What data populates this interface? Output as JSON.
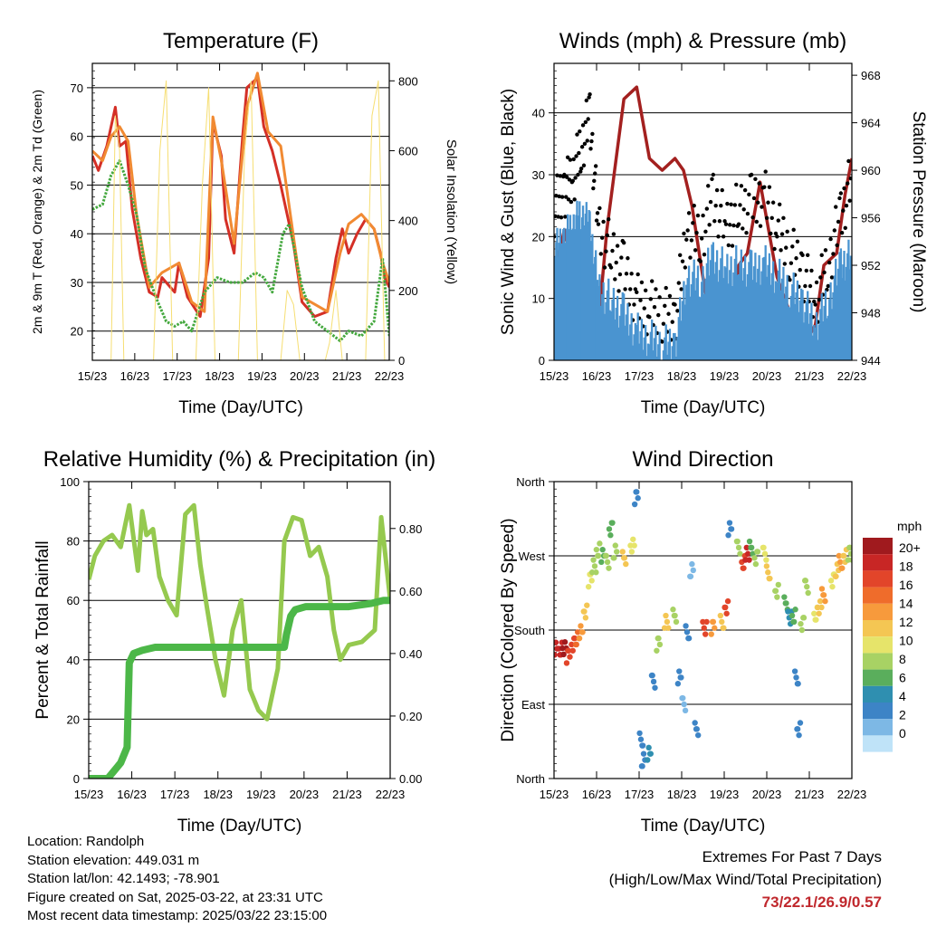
{
  "x_tick_labels": [
    "15/23",
    "16/23",
    "17/23",
    "18/23",
    "19/23",
    "20/23",
    "21/23",
    "22/23"
  ],
  "colors": {
    "temp2m": "#d42f26",
    "temp9m": "#f18a32",
    "dewpoint": "#44a83e",
    "solar": "#f6de72",
    "wind": "#4a94d0",
    "gust": "#000000",
    "pressure": "#a3201f",
    "rh": "#95c94f",
    "precip": "#4cb748",
    "extremes": "#c0282d"
  },
  "chart_data": [
    {
      "id": "temperature",
      "type": "line",
      "title": "Temperature (F)",
      "xlabel": "Time (Day/UTC)",
      "ylabel": "2m & 9m T (Red, Orange) & 2m Td (Green)",
      "y2label": "Solar Insolation (Yellow)",
      "x_range_days": [
        15.958,
        22.958
      ],
      "ylim": [
        14,
        75
      ],
      "y2lim": [
        0,
        850
      ],
      "yticks": [
        20,
        30,
        40,
        50,
        60,
        70
      ],
      "y2ticks": [
        0,
        200,
        400,
        600,
        800
      ],
      "grid": true,
      "series": [
        {
          "name": "2m T",
          "color_key": "temp2m",
          "x": [
            15.96,
            16.1,
            16.3,
            16.5,
            16.6,
            16.75,
            16.9,
            17.1,
            17.3,
            17.5,
            17.6,
            17.9,
            18.0,
            18.2,
            18.35,
            18.5,
            18.7,
            18.8,
            19.0,
            19.1,
            19.3,
            19.5,
            19.6,
            19.85,
            20.0,
            20.2,
            20.4,
            20.7,
            20.9,
            21.2,
            21.5,
            21.7,
            21.85,
            22.0,
            22.2,
            22.4,
            22.6,
            22.75,
            22.85,
            22.96
          ],
          "y": [
            56,
            53,
            58,
            66,
            58,
            59,
            45,
            35,
            28,
            27,
            31,
            28,
            34,
            27,
            25,
            23,
            35,
            63,
            56,
            43,
            36,
            60,
            70,
            72,
            62,
            57,
            50,
            38,
            26,
            23,
            24,
            35,
            41,
            36,
            40,
            43,
            41,
            36,
            31,
            29
          ]
        },
        {
          "name": "9m T",
          "color_key": "temp9m",
          "x": [
            15.96,
            16.2,
            16.4,
            16.6,
            16.8,
            17.0,
            17.3,
            17.6,
            18.0,
            18.3,
            18.6,
            18.8,
            19.0,
            19.3,
            19.6,
            19.85,
            20.1,
            20.4,
            20.9,
            21.5,
            21.8,
            22.0,
            22.3,
            22.6,
            22.8,
            22.96
          ],
          "y": [
            57,
            55,
            60,
            62,
            59,
            44,
            29,
            32,
            34,
            26,
            24,
            64,
            55,
            38,
            66,
            73,
            61,
            58,
            27,
            24,
            36,
            42,
            44,
            41,
            34,
            30
          ]
        },
        {
          "name": "2m Td",
          "color_key": "dewpoint",
          "x": [
            15.96,
            16.2,
            16.4,
            16.6,
            16.8,
            17.0,
            17.2,
            17.5,
            17.7,
            17.9,
            18.1,
            18.3,
            18.6,
            18.9,
            19.2,
            19.5,
            19.8,
            20.0,
            20.2,
            20.45,
            20.6,
            20.9,
            21.2,
            21.5,
            21.8,
            22.0,
            22.3,
            22.6,
            22.8,
            22.96
          ],
          "y": [
            45,
            46,
            52,
            55,
            50,
            44,
            33,
            26,
            22,
            21,
            22,
            20,
            28,
            31,
            30,
            30,
            32,
            31,
            28,
            40,
            42,
            29,
            22,
            20,
            18,
            20,
            19,
            22,
            35,
            19
          ]
        },
        {
          "name": "Solar",
          "color_key": "solar",
          "x": [
            15.96,
            16.4,
            16.5,
            16.6,
            16.7,
            17.4,
            17.55,
            17.7,
            17.85,
            18.4,
            18.55,
            18.7,
            18.85,
            19.4,
            19.55,
            19.7,
            19.85,
            20.4,
            20.55,
            20.7,
            20.85,
            21.45,
            21.55,
            21.7,
            21.85,
            22.4,
            22.55,
            22.7,
            22.85,
            22.96
          ],
          "y2": [
            0,
            0,
            700,
            600,
            0,
            0,
            600,
            800,
            0,
            0,
            500,
            780,
            0,
            0,
            600,
            800,
            0,
            0,
            200,
            160,
            0,
            0,
            50,
            200,
            0,
            0,
            700,
            800,
            0,
            0
          ]
        }
      ]
    },
    {
      "id": "winds",
      "type": "scatter",
      "title": "Winds (mph) & Pressure (mb)",
      "xlabel": "Time (Day/UTC)",
      "ylabel": "Sonic Wind & Gust (Blue, Black)",
      "y2label": "Station Pressure (Maroon)",
      "x_range_days": [
        15.958,
        22.958
      ],
      "ylim": [
        0,
        48
      ],
      "y2lim": [
        944,
        969
      ],
      "yticks": [
        0,
        10,
        20,
        30,
        40
      ],
      "y2ticks": [
        944,
        948,
        952,
        956,
        960,
        964,
        968
      ],
      "grid": true,
      "series": [
        {
          "name": "Pressure",
          "color_key": "pressure",
          "x": [
            15.96,
            16.2,
            16.4,
            16.6,
            16.8,
            16.95,
            17.2,
            17.6,
            17.9,
            18.2,
            18.5,
            18.8,
            19.0,
            19.2,
            19.5,
            19.7,
            19.9,
            20.1,
            20.3,
            20.5,
            20.8,
            21.2,
            21.5,
            21.8,
            22.1,
            22.3,
            22.6,
            22.8,
            22.96
          ],
          "y2": [
            951,
            955,
            952,
            949,
            946,
            945,
            955,
            966,
            967,
            961,
            960,
            961,
            960,
            957,
            950,
            947,
            948,
            947,
            952,
            953,
            959,
            951,
            948,
            945,
            947,
            952,
            953,
            958,
            961
          ]
        },
        {
          "name": "Gust",
          "color_key": "gust",
          "x": [
            15.96,
            16.2,
            16.4,
            16.6,
            16.8,
            17.0,
            17.3,
            17.6,
            17.9,
            18.2,
            18.5,
            18.8,
            19.1,
            19.4,
            19.7,
            20.0,
            20.3,
            20.6,
            20.9,
            21.2,
            21.5,
            21.8,
            22.1,
            22.4,
            22.7,
            22.96
          ],
          "y": [
            25,
            28,
            30,
            35,
            40,
            22,
            18,
            15,
            10,
            9,
            8,
            7,
            22,
            20,
            27,
            22,
            25,
            26,
            27,
            22,
            18,
            15,
            10,
            16,
            24,
            30
          ]
        },
        {
          "name": "Wind",
          "color_key": "wind",
          "x": [
            15.96,
            16.2,
            16.4,
            16.6,
            16.8,
            17.0,
            17.3,
            17.6,
            17.9,
            18.2,
            18.5,
            18.8,
            19.1,
            19.4,
            19.7,
            20.0,
            20.3,
            20.6,
            20.9,
            21.2,
            21.5,
            21.8,
            22.1,
            22.4,
            22.7,
            22.96
          ],
          "y": [
            18,
            20,
            22,
            24,
            22,
            12,
            10,
            8,
            5,
            4,
            3,
            3,
            14,
            13,
            17,
            15,
            16,
            15,
            16,
            14,
            12,
            10,
            6,
            10,
            16,
            17
          ]
        }
      ]
    },
    {
      "id": "humidity",
      "type": "line",
      "title": "Relative Humidity (%) & Precipitation (in)",
      "xlabel": "Time (Day/UTC)",
      "ylabel": "Percent & Total Rainfall",
      "x_range_days": [
        15.958,
        22.958
      ],
      "ylim": [
        0,
        100
      ],
      "y2lim": [
        0,
        0.95
      ],
      "yticks": [
        0,
        20,
        40,
        60,
        80,
        100
      ],
      "y2ticks": [
        "0.00",
        "0.20",
        "0.40",
        "0.60",
        "0.80"
      ],
      "grid": true,
      "series": [
        {
          "name": "RH",
          "color_key": "rh",
          "x": [
            15.96,
            16.1,
            16.3,
            16.5,
            16.7,
            16.9,
            17.1,
            17.2,
            17.3,
            17.45,
            17.6,
            17.8,
            18.0,
            18.2,
            18.4,
            18.55,
            18.7,
            18.9,
            19.1,
            19.3,
            19.5,
            19.7,
            19.9,
            20.1,
            20.35,
            20.5,
            20.7,
            20.9,
            21.1,
            21.3,
            21.5,
            21.65,
            21.8,
            22.0,
            22.3,
            22.6,
            22.75,
            22.96
          ],
          "y": [
            67,
            75,
            80,
            82,
            78,
            92,
            70,
            90,
            82,
            84,
            68,
            60,
            55,
            89,
            92,
            72,
            58,
            40,
            28,
            50,
            60,
            30,
            23,
            20,
            37,
            80,
            88,
            87,
            75,
            78,
            68,
            50,
            40,
            45,
            46,
            50,
            88,
            60
          ]
        },
        {
          "name": "Precip",
          "color_key": "precip",
          "x": [
            15.96,
            16.4,
            16.7,
            16.85,
            16.9,
            17.0,
            17.2,
            17.5,
            18.0,
            19.0,
            20.0,
            20.5,
            20.55,
            20.65,
            20.75,
            21.0,
            21.5,
            22.0,
            22.5,
            22.8,
            22.96
          ],
          "y2": [
            0,
            0,
            0.05,
            0.1,
            0.37,
            0.4,
            0.41,
            0.42,
            0.42,
            0.42,
            0.42,
            0.42,
            0.46,
            0.52,
            0.54,
            0.55,
            0.55,
            0.55,
            0.56,
            0.57,
            0.57
          ]
        }
      ]
    },
    {
      "id": "direction",
      "type": "scatter",
      "title": "Wind Direction",
      "xlabel": "Time (Day/UTC)",
      "ylabel": "Direction (Colored By Speed)",
      "x_range_days": [
        15.958,
        22.958
      ],
      "ylim": [
        0,
        360
      ],
      "yticks": [
        "North",
        "East",
        "South",
        "West",
        "North"
      ],
      "ytick_values": [
        0,
        90,
        180,
        270,
        360
      ],
      "grid": true,
      "legend": {
        "title": "mph",
        "labels": [
          "20+",
          "18",
          "16",
          "14",
          "12",
          "10",
          "8",
          "6",
          "4",
          "2",
          "0"
        ],
        "colors": [
          "#a01a1e",
          "#c82625",
          "#e2452a",
          "#ef6c2b",
          "#f79a3c",
          "#f4c653",
          "#e6e46a",
          "#a8d264",
          "#5aae5c",
          "#2f8fb0",
          "#3d84c6",
          "#7db8e5",
          "#bfe3f8"
        ]
      },
      "points": [
        {
          "x": 16.0,
          "y": 160,
          "s": 18
        },
        {
          "x": 16.1,
          "y": 155,
          "s": 19
        },
        {
          "x": 16.2,
          "y": 158,
          "s": 20
        },
        {
          "x": 16.3,
          "y": 150,
          "s": 17
        },
        {
          "x": 16.4,
          "y": 160,
          "s": 16
        },
        {
          "x": 16.5,
          "y": 170,
          "s": 15
        },
        {
          "x": 16.6,
          "y": 180,
          "s": 14
        },
        {
          "x": 16.7,
          "y": 200,
          "s": 12
        },
        {
          "x": 16.8,
          "y": 240,
          "s": 10
        },
        {
          "x": 16.9,
          "y": 260,
          "s": 8
        },
        {
          "x": 17.0,
          "y": 275,
          "s": 9
        },
        {
          "x": 17.1,
          "y": 270,
          "s": 7
        },
        {
          "x": 17.2,
          "y": 265,
          "s": 8
        },
        {
          "x": 17.3,
          "y": 300,
          "s": 6
        },
        {
          "x": 17.4,
          "y": 275,
          "s": 9
        },
        {
          "x": 17.6,
          "y": 270,
          "s": 11
        },
        {
          "x": 17.8,
          "y": 280,
          "s": 10
        },
        {
          "x": 17.9,
          "y": 340,
          "s": 3
        },
        {
          "x": 18.0,
          "y": 50,
          "s": 4
        },
        {
          "x": 18.05,
          "y": 20,
          "s": 3
        },
        {
          "x": 18.2,
          "y": 30,
          "s": 5
        },
        {
          "x": 18.3,
          "y": 120,
          "s": 4
        },
        {
          "x": 18.4,
          "y": 160,
          "s": 8
        },
        {
          "x": 18.6,
          "y": 190,
          "s": 11
        },
        {
          "x": 18.8,
          "y": 200,
          "s": 9
        },
        {
          "x": 18.9,
          "y": 120,
          "s": 3
        },
        {
          "x": 19.0,
          "y": 90,
          "s": 2
        },
        {
          "x": 19.1,
          "y": 180,
          "s": 4
        },
        {
          "x": 19.2,
          "y": 250,
          "s": 2
        },
        {
          "x": 19.3,
          "y": 60,
          "s": 3
        },
        {
          "x": 19.5,
          "y": 185,
          "s": 16
        },
        {
          "x": 19.7,
          "y": 180,
          "s": 14
        },
        {
          "x": 19.9,
          "y": 190,
          "s": 12
        },
        {
          "x": 20.0,
          "y": 210,
          "s": 16
        },
        {
          "x": 20.1,
          "y": 300,
          "s": 4
        },
        {
          "x": 20.3,
          "y": 280,
          "s": 8
        },
        {
          "x": 20.4,
          "y": 265,
          "s": 16
        },
        {
          "x": 20.5,
          "y": 270,
          "s": 18
        },
        {
          "x": 20.6,
          "y": 280,
          "s": 7
        },
        {
          "x": 20.7,
          "y": 270,
          "s": 9
        },
        {
          "x": 20.9,
          "y": 270,
          "s": 10
        },
        {
          "x": 21.0,
          "y": 250,
          "s": 11
        },
        {
          "x": 21.2,
          "y": 230,
          "s": 8
        },
        {
          "x": 21.4,
          "y": 210,
          "s": 6
        },
        {
          "x": 21.5,
          "y": 195,
          "s": 5
        },
        {
          "x": 21.6,
          "y": 200,
          "s": 7
        },
        {
          "x": 21.65,
          "y": 120,
          "s": 4
        },
        {
          "x": 21.7,
          "y": 60,
          "s": 4
        },
        {
          "x": 21.8,
          "y": 190,
          "s": 9
        },
        {
          "x": 21.9,
          "y": 230,
          "s": 8
        },
        {
          "x": 22.1,
          "y": 200,
          "s": 10
        },
        {
          "x": 22.2,
          "y": 210,
          "s": 12
        },
        {
          "x": 22.3,
          "y": 220,
          "s": 13
        },
        {
          "x": 22.5,
          "y": 240,
          "s": 10
        },
        {
          "x": 22.6,
          "y": 255,
          "s": 12
        },
        {
          "x": 22.7,
          "y": 260,
          "s": 14
        },
        {
          "x": 22.8,
          "y": 270,
          "s": 12
        },
        {
          "x": 22.9,
          "y": 275,
          "s": 9
        },
        {
          "x": 22.95,
          "y": 270,
          "s": 8
        }
      ]
    }
  ],
  "footer": {
    "location": "Location: Randolph",
    "elevation": "Station elevation: 449.031 m",
    "latlon": "Station lat/lon: 42.1493; -78.901",
    "created": "Figure created on Sat, 2025-03-22, at 23:31 UTC",
    "timestamp": "Most recent data timestamp: 2025/03/22 23:15:00"
  },
  "extremes": {
    "title": "Extremes For Past 7 Days",
    "subtitle": "(High/Low/Max Wind/Total Precipitation)",
    "values": "73/22.1/26.9/0.57"
  }
}
